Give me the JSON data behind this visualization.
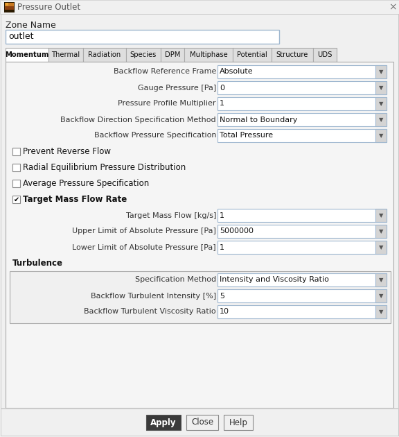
{
  "title": "Pressure Outlet",
  "bg_color": "#f0f0f0",
  "zone_name_label": "Zone Name",
  "zone_name_value": "outlet",
  "tabs": [
    "Momentum",
    "Thermal",
    "Radiation",
    "Species",
    "DPM",
    "Multiphase",
    "Potential",
    "Structure",
    "UDS"
  ],
  "active_tab": "Momentum",
  "label_color": "#333333",
  "input_bg": "#ffffff",
  "input_border": "#a0b8d0",
  "apply_btn_color": "#3a3a3a",
  "apply_btn_text_color": "#ffffff",
  "rows": [
    {
      "label": "Backflow Reference Frame",
      "value": "Absolute",
      "type": "dropdown"
    },
    {
      "label": "Gauge Pressure [Pa]",
      "value": "0",
      "type": "dropdown"
    },
    {
      "label": "Pressure Profile Multiplier",
      "value": "1",
      "type": "dropdown"
    },
    {
      "label": "Backflow Direction Specification Method",
      "value": "Normal to Boundary",
      "type": "dropdown",
      "full_width_label": true
    },
    {
      "label": "Backflow Pressure Specification",
      "value": "Total Pressure",
      "type": "dropdown"
    },
    {
      "label": "Prevent Reverse Flow",
      "type": "checkbox",
      "checked": false
    },
    {
      "label": "Radial Equilibrium Pressure Distribution",
      "type": "checkbox",
      "checked": false
    },
    {
      "label": "Average Pressure Specification",
      "type": "checkbox",
      "checked": false
    },
    {
      "label": "Target Mass Flow Rate",
      "type": "checkbox",
      "checked": true,
      "bold": true
    },
    {
      "label": "Target Mass Flow [kg/s]",
      "value": "1",
      "type": "dropdown"
    },
    {
      "label": "Upper Limit of Absolute Pressure [Pa]",
      "value": "5000000",
      "type": "dropdown"
    },
    {
      "label": "Lower Limit of Absolute Pressure [Pa]",
      "value": "1",
      "type": "dropdown"
    },
    {
      "label": "Turbulence",
      "type": "section_header"
    },
    {
      "label": "Specification Method",
      "value": "Intensity and Viscosity Ratio",
      "type": "dropdown",
      "in_turb_box": true
    },
    {
      "label": "Backflow Turbulent Intensity [%]",
      "value": "5",
      "type": "dropdown",
      "in_turb_box": true
    },
    {
      "label": "Backflow Turbulent Viscosity Ratio",
      "value": "10",
      "type": "dropdown",
      "in_turb_box": true
    }
  ],
  "buttons": [
    {
      "label": "Apply",
      "dark": true
    },
    {
      "label": "Close",
      "dark": false
    },
    {
      "label": "Help",
      "dark": false
    }
  ]
}
